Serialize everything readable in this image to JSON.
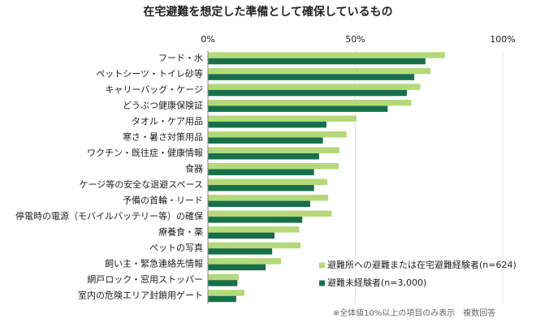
{
  "chart_data": {
    "type": "bar",
    "orientation": "horizontal",
    "title": "在宅避難を想定した準備として確保しているもの",
    "categories": [
      "フード・水",
      "ペットシーツ・トイレ砂等",
      "キャリーバッグ・ケージ",
      "どうぶつ健康保険証",
      "タオル・ケア用品",
      "寒さ・暑さ対策用品",
      "ワクチン・既往症・健康情報",
      "食器",
      "ケージ等の安全な退避スペース",
      "予備の首輪・リード",
      "停電時の電源（モバイルバッテリー等）の確保",
      "療養食・薬",
      "ペットの写真",
      "飼い主・緊急連絡先情報",
      "網戸ロック・窓用ストッパー",
      "室内の危険エリア封鎖用ゲート"
    ],
    "series": [
      {
        "name": "避難所への避難または在宅避難経験者(n=624)",
        "color": "#b5d97a",
        "values": [
          80.4,
          75.5,
          72,
          69,
          50.4,
          47,
          44.6,
          44.4,
          40.5,
          40.8,
          42,
          31,
          31.4,
          24.8,
          10.5,
          12.4
        ]
      },
      {
        "name": "避難未経験者(n=3,000)",
        "color": "#17704a",
        "values": [
          73.8,
          70,
          67.5,
          61,
          40.2,
          39,
          37.7,
          36,
          36,
          34.7,
          32,
          22.6,
          21.8,
          19.6,
          10,
          9.6
        ]
      }
    ],
    "xlim": [
      0,
      100
    ],
    "xticks": [
      {
        "value": 0,
        "label": "0%"
      },
      {
        "value": 50,
        "label": "50%"
      },
      {
        "value": 100,
        "label": "100%"
      }
    ],
    "grid": true,
    "note": "※全体値10%以上の項目のみ表示　複数回答"
  }
}
